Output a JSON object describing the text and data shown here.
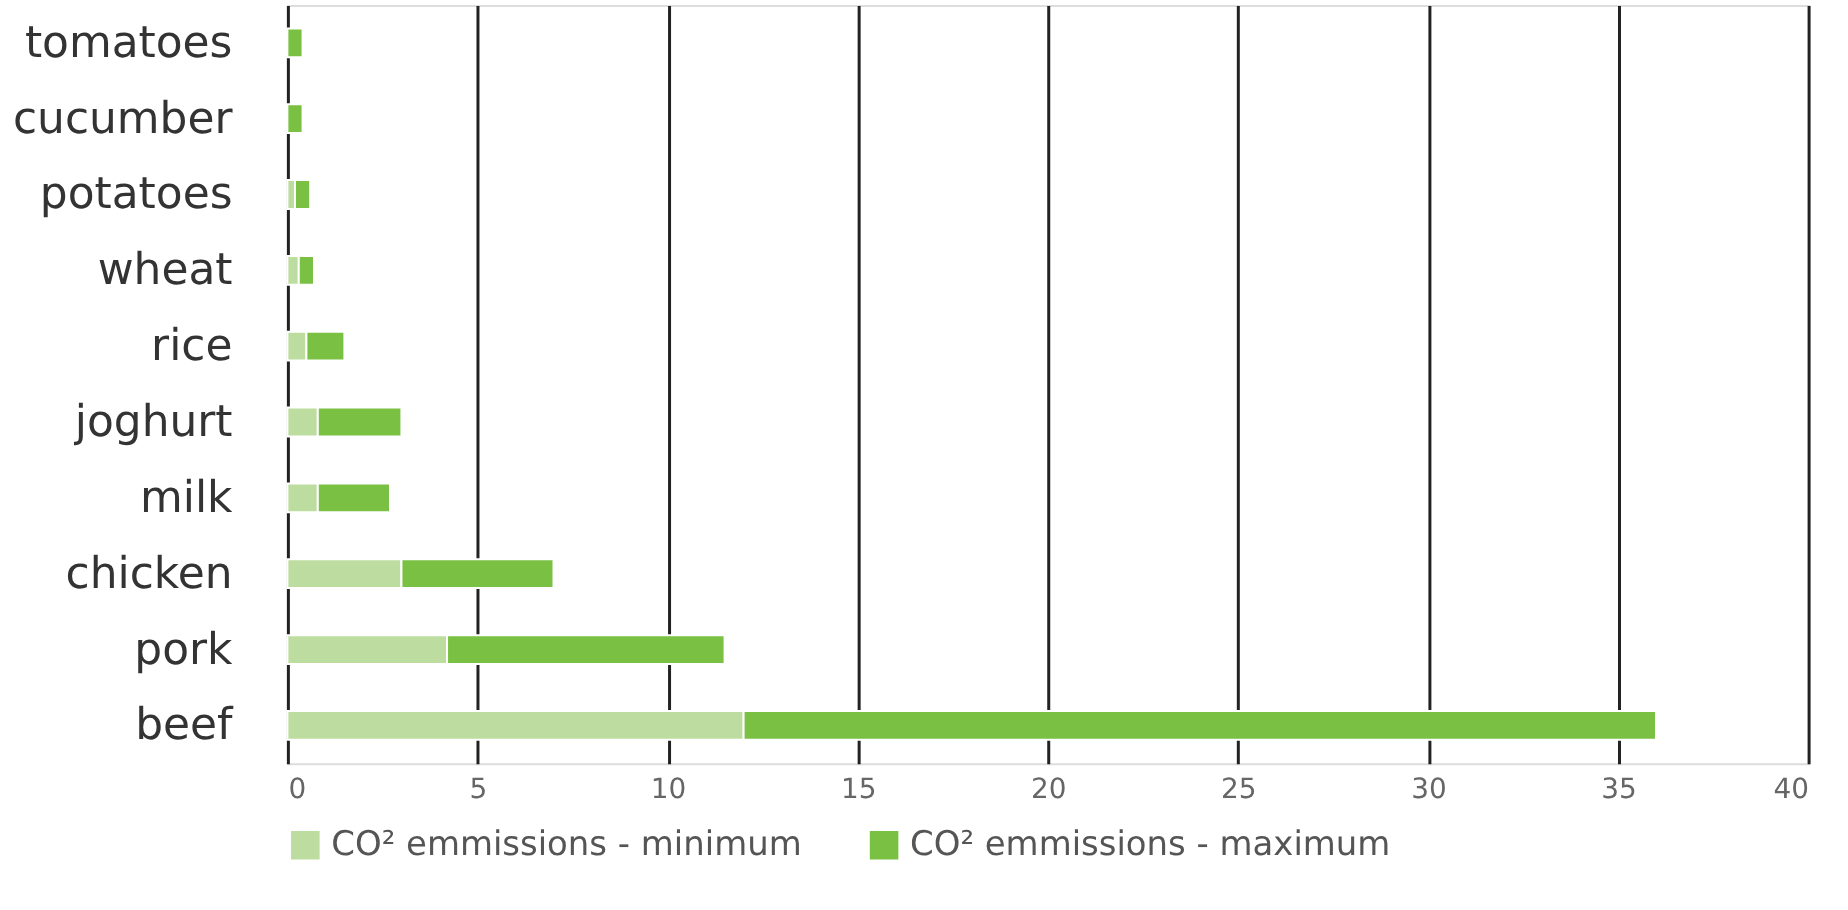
{
  "chart_data": {
    "type": "bar",
    "orientation": "horizontal",
    "stacked": true,
    "categories": [
      "tomatoes",
      "cucumber",
      "potatoes",
      "wheat",
      "rice",
      "joghurt",
      "milk",
      "chicken",
      "pork",
      "beef"
    ],
    "series": [
      {
        "name": "CO² emmissions - minimum",
        "color": "#bddc9f",
        "values": [
          0,
          0,
          0.2,
          0.3,
          0.5,
          0.8,
          0.8,
          3,
          4.2,
          12
        ]
      },
      {
        "name": "CO² emmissions - maximum",
        "color": "#7ac143",
        "values": [
          0.4,
          0.4,
          0.4,
          0.4,
          1.0,
          2.2,
          1.9,
          4,
          7.3,
          24
        ]
      }
    ],
    "xlim": [
      0,
      40
    ],
    "xticks": [
      0,
      5,
      10,
      15,
      20,
      25,
      30,
      35,
      40
    ],
    "grid": "x",
    "legend": "bottom"
  }
}
